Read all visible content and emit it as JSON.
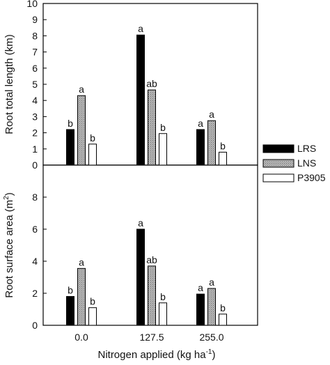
{
  "chart_data": [
    {
      "type": "bar",
      "ylabel_main": "Root total length (km)",
      "ylim": [
        0,
        10
      ],
      "yticks": [
        0,
        1,
        2,
        3,
        4,
        5,
        6,
        7,
        8,
        9,
        10
      ],
      "categories": [
        "0.0",
        "127.5",
        "255.0"
      ],
      "series": [
        {
          "name": "LRS",
          "values": [
            2.2,
            8.05,
            2.2
          ],
          "letters": [
            "b",
            "a",
            "a"
          ]
        },
        {
          "name": "LNS",
          "values": [
            4.3,
            4.65,
            2.75
          ],
          "letters": [
            "a",
            "ab",
            "a"
          ]
        },
        {
          "name": "P3905",
          "values": [
            1.3,
            1.95,
            0.8
          ],
          "letters": [
            "b",
            "b",
            "b"
          ]
        }
      ]
    },
    {
      "type": "bar",
      "ylabel_main": "Root surface area (m",
      "ylabel_sup": "2",
      "ylabel_end": ")",
      "ylim": [
        0,
        10
      ],
      "yticks": [
        0,
        2,
        4,
        6,
        8
      ],
      "categories": [
        "0.0",
        "127.5",
        "255.0"
      ],
      "series": [
        {
          "name": "LRS",
          "values": [
            1.8,
            6.0,
            1.95
          ],
          "letters": [
            "b",
            "a",
            "a"
          ]
        },
        {
          "name": "LNS",
          "values": [
            3.55,
            3.7,
            2.3
          ],
          "letters": [
            "a",
            "ab",
            "a"
          ]
        },
        {
          "name": "P3905",
          "values": [
            1.1,
            1.4,
            0.7
          ],
          "letters": [
            "b",
            "b",
            "b"
          ]
        }
      ]
    }
  ],
  "xaxis": {
    "label_main": "Nitrogen applied (kg ha",
    "label_sup": "-1",
    "label_end": ")"
  },
  "legend": {
    "placement": "right",
    "items": [
      {
        "name": "LRS",
        "fill": "#000000"
      },
      {
        "name": "LNS",
        "fill": "#a8a8a8"
      },
      {
        "name": "P3905",
        "fill": "#ffffff"
      }
    ]
  },
  "colors": {
    "LRS": "#000000",
    "LNS": "#a8a8a8",
    "P3905": "#ffffff"
  }
}
